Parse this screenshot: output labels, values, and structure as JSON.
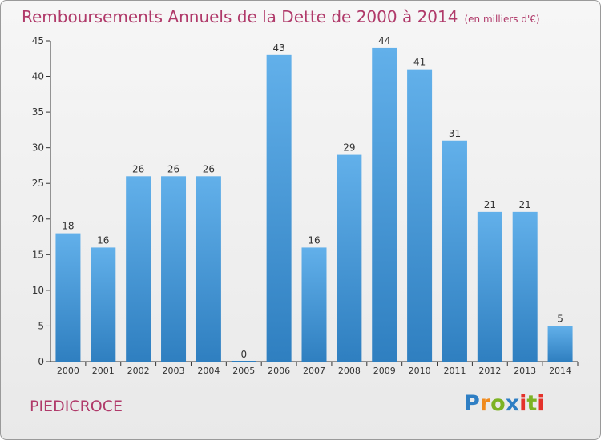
{
  "title": "Remboursements Annuels de la Dette de 2000 à 2014",
  "title_unit": "(en milliers d'€)",
  "commune": "PIEDICROCE",
  "logo": {
    "text": "Proxiti"
  },
  "colors": {
    "title": "#b03a6a",
    "bar_top": "#62b0ea",
    "bar_bottom": "#2f7fc0",
    "axis": "#333333"
  },
  "chart_data": {
    "type": "bar",
    "title": "Remboursements Annuels de la Dette de 2000 à 2014",
    "categories": [
      "2000",
      "2001",
      "2002",
      "2003",
      "2004",
      "2005",
      "2006",
      "2007",
      "2008",
      "2009",
      "2010",
      "2011",
      "2012",
      "2013",
      "2014"
    ],
    "values": [
      18,
      16,
      26,
      26,
      26,
      0,
      43,
      16,
      29,
      44,
      41,
      31,
      21,
      21,
      5
    ],
    "ylim": [
      0,
      45
    ],
    "yticks": [
      0,
      5,
      10,
      15,
      20,
      25,
      30,
      35,
      40,
      45
    ],
    "grid": false,
    "legend": "none"
  }
}
